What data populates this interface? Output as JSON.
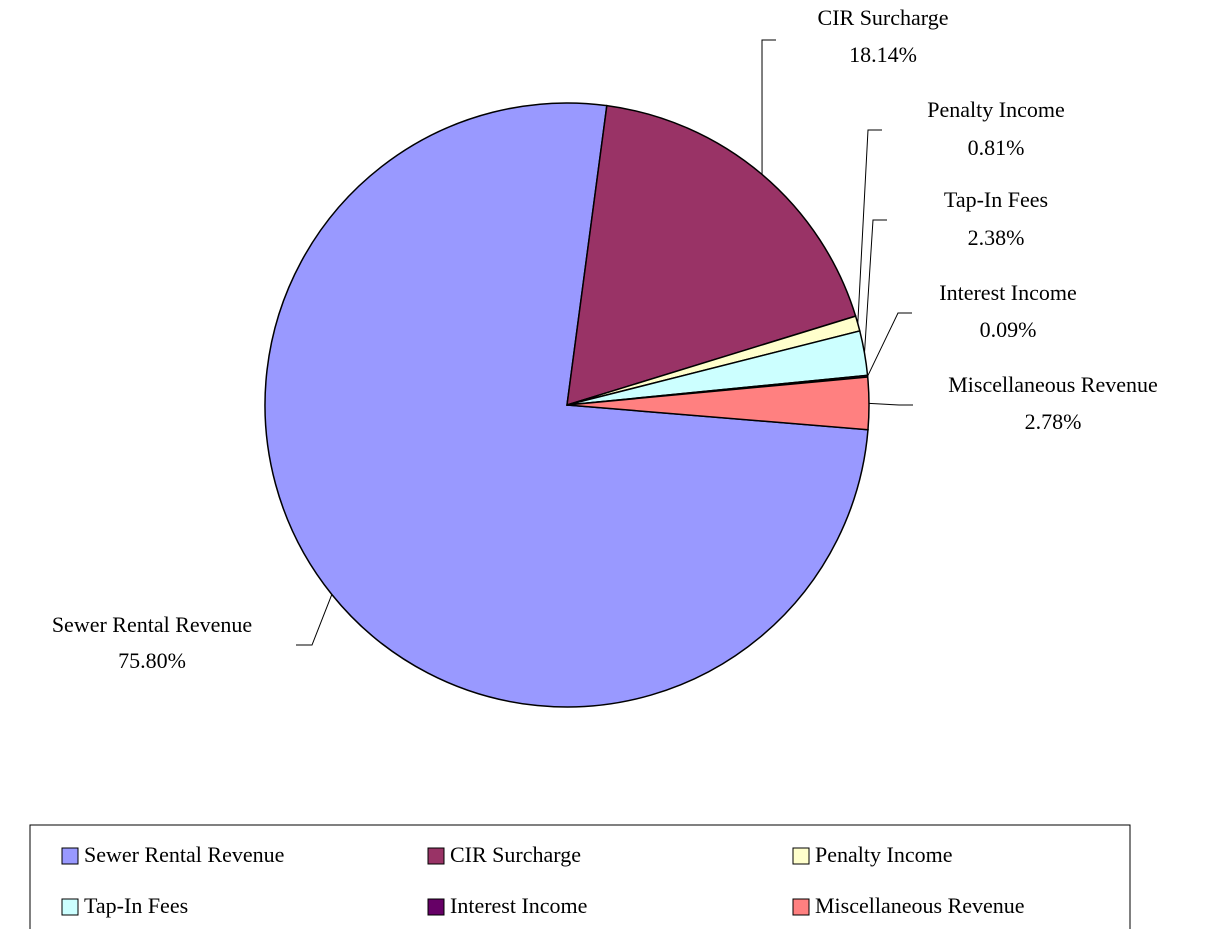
{
  "chart_data": {
    "type": "pie",
    "categories": [
      "Sewer Rental Revenue",
      "CIR Surcharge",
      "Penalty Income",
      "Tap-In Fees",
      "Interest Income",
      "Miscellaneous Revenue"
    ],
    "values": [
      75.8,
      18.14,
      0.81,
      2.38,
      0.09,
      2.78
    ],
    "value_labels": [
      "75.80%",
      "18.14%",
      "0.81%",
      "2.38%",
      "0.09%",
      "2.78%"
    ],
    "colors": [
      "#9999FF",
      "#993366",
      "#FFFFCC",
      "#CCFFFF",
      "#660066",
      "#FF8080"
    ]
  }
}
